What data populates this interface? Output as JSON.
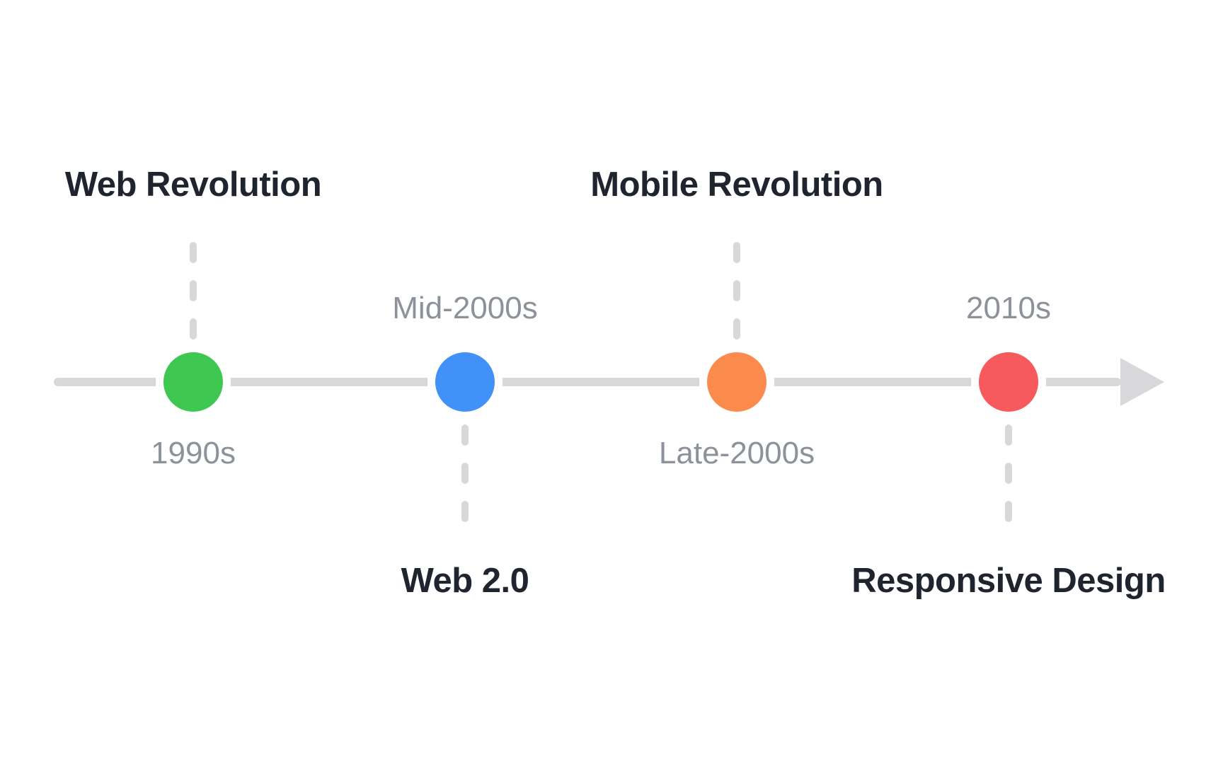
{
  "theme": {
    "background": "#FFFFFF",
    "axis_color": "#D8D8DA",
    "title_color": "#1F242F",
    "period_color": "#8C919A"
  },
  "timeline": {
    "events": [
      {
        "title": "Web Revolution",
        "period": "1990s",
        "color": "#3EC851",
        "title_position": "above"
      },
      {
        "title": "Web 2.0",
        "period": "Mid-2000s",
        "color": "#4191F8",
        "title_position": "below"
      },
      {
        "title": "Mobile Revolution",
        "period": "Late-2000s",
        "color": "#FB8A4D",
        "title_position": "above"
      },
      {
        "title": "Responsive Design",
        "period": "2010s",
        "color": "#F65A5C",
        "title_position": "below"
      }
    ]
  }
}
